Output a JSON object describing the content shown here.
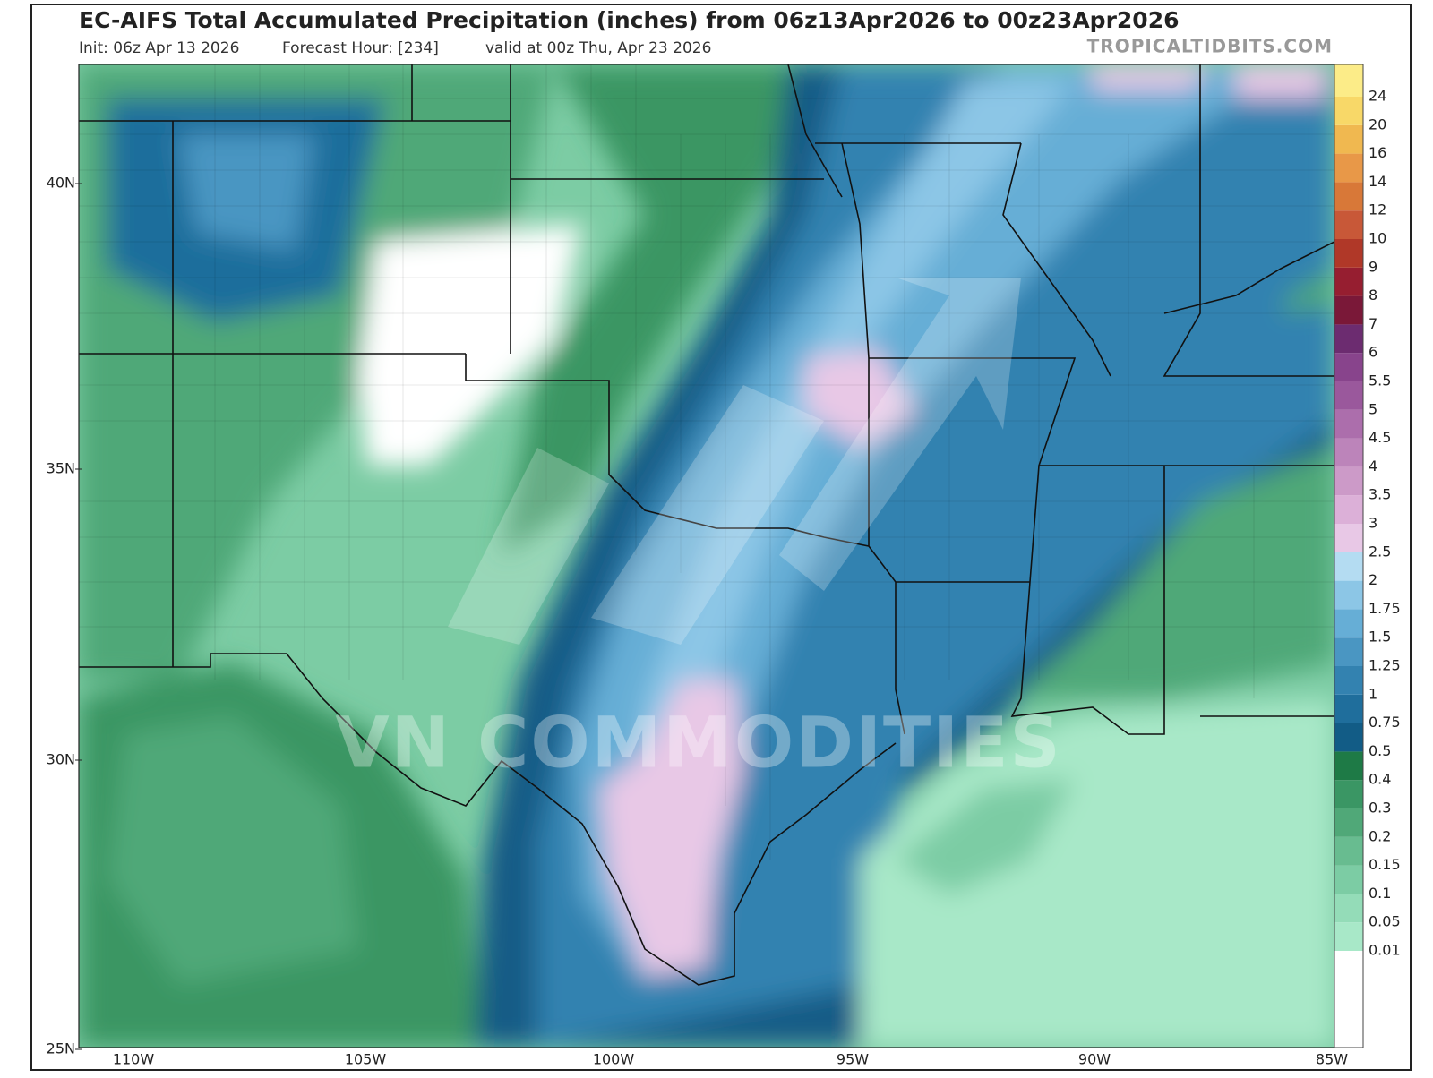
{
  "header": {
    "title": "EC-AIFS Total Accumulated Precipitation (inches) from 06z13Apr2026 to 00z23Apr2026",
    "init": "Init: 06z Apr 13 2026",
    "forecast_hour": "Forecast Hour: [234]",
    "valid": "valid at 00z Thu, Apr 23 2026",
    "source": "TROPICALTIDBITS.COM"
  },
  "map": {
    "lat_labels": [
      "40N",
      "35N",
      "30N",
      "25N"
    ],
    "lon_labels": [
      "110W",
      "105W",
      "100W",
      "95W",
      "90W",
      "85W"
    ],
    "watermark": "VN COMMODITIES"
  },
  "legend": {
    "below_color": "#ffffff",
    "levels": [
      {
        "label": "0.01",
        "color": "#a8e8c8"
      },
      {
        "label": "0.05",
        "color": "#94dcb8"
      },
      {
        "label": "0.1",
        "color": "#7ccca4"
      },
      {
        "label": "0.15",
        "color": "#68bc90"
      },
      {
        "label": "0.2",
        "color": "#50a878"
      },
      {
        "label": "0.3",
        "color": "#3a9664"
      },
      {
        "label": "0.4",
        "color": "#1e7a46"
      },
      {
        "label": "0.5",
        "color": "#125c86"
      },
      {
        "label": "0.75",
        "color": "#1f6e9c"
      },
      {
        "label": "1",
        "color": "#3382b0"
      },
      {
        "label": "1.25",
        "color": "#4a96c2"
      },
      {
        "label": "1.5",
        "color": "#66aed6"
      },
      {
        "label": "1.75",
        "color": "#8cc6e6"
      },
      {
        "label": "2",
        "color": "#b4dcf2"
      },
      {
        "label": "2.5",
        "color": "#e8c8e6"
      },
      {
        "label": "3",
        "color": "#dcb0d8"
      },
      {
        "label": "3.5",
        "color": "#cc9ac8"
      },
      {
        "label": "4",
        "color": "#bc84ba"
      },
      {
        "label": "4.5",
        "color": "#ac6eac"
      },
      {
        "label": "5",
        "color": "#9a589c"
      },
      {
        "label": "5.5",
        "color": "#88448c"
      },
      {
        "label": "6",
        "color": "#6c2c70"
      },
      {
        "label": "7",
        "color": "#7a1838"
      },
      {
        "label": "8",
        "color": "#961e30"
      },
      {
        "label": "9",
        "color": "#b03828"
      },
      {
        "label": "10",
        "color": "#c85838"
      },
      {
        "label": "12",
        "color": "#d87838"
      },
      {
        "label": "14",
        "color": "#e89848"
      },
      {
        "label": "16",
        "color": "#f0b850"
      },
      {
        "label": "20",
        "color": "#f8d868"
      },
      {
        "label": "24",
        "color": "#fcec88"
      }
    ]
  }
}
